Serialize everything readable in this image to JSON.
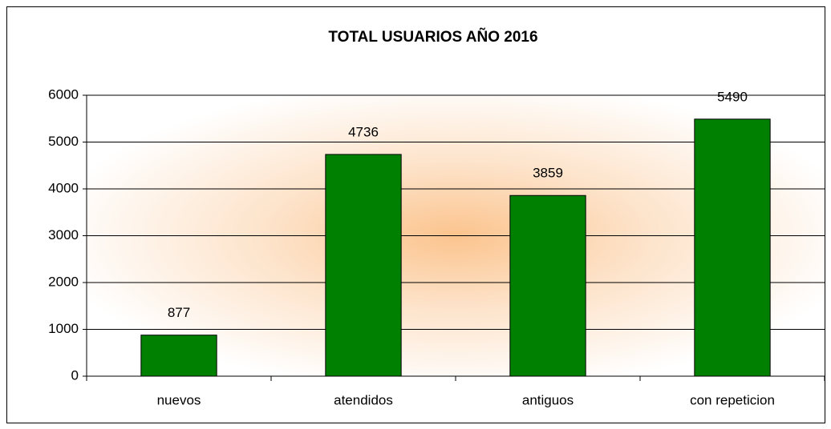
{
  "chart_data": {
    "type": "bar",
    "title": "TOTAL USUARIOS AÑO 2016",
    "categories": [
      "nuevos",
      "atendidos",
      "antiguos",
      "con repeticion"
    ],
    "values": [
      877,
      4736,
      3859,
      5490
    ],
    "color": "#008000",
    "ylim": [
      0,
      6000
    ],
    "yticks": [
      0,
      1000,
      2000,
      3000,
      4000,
      5000,
      6000
    ],
    "grid": true
  }
}
